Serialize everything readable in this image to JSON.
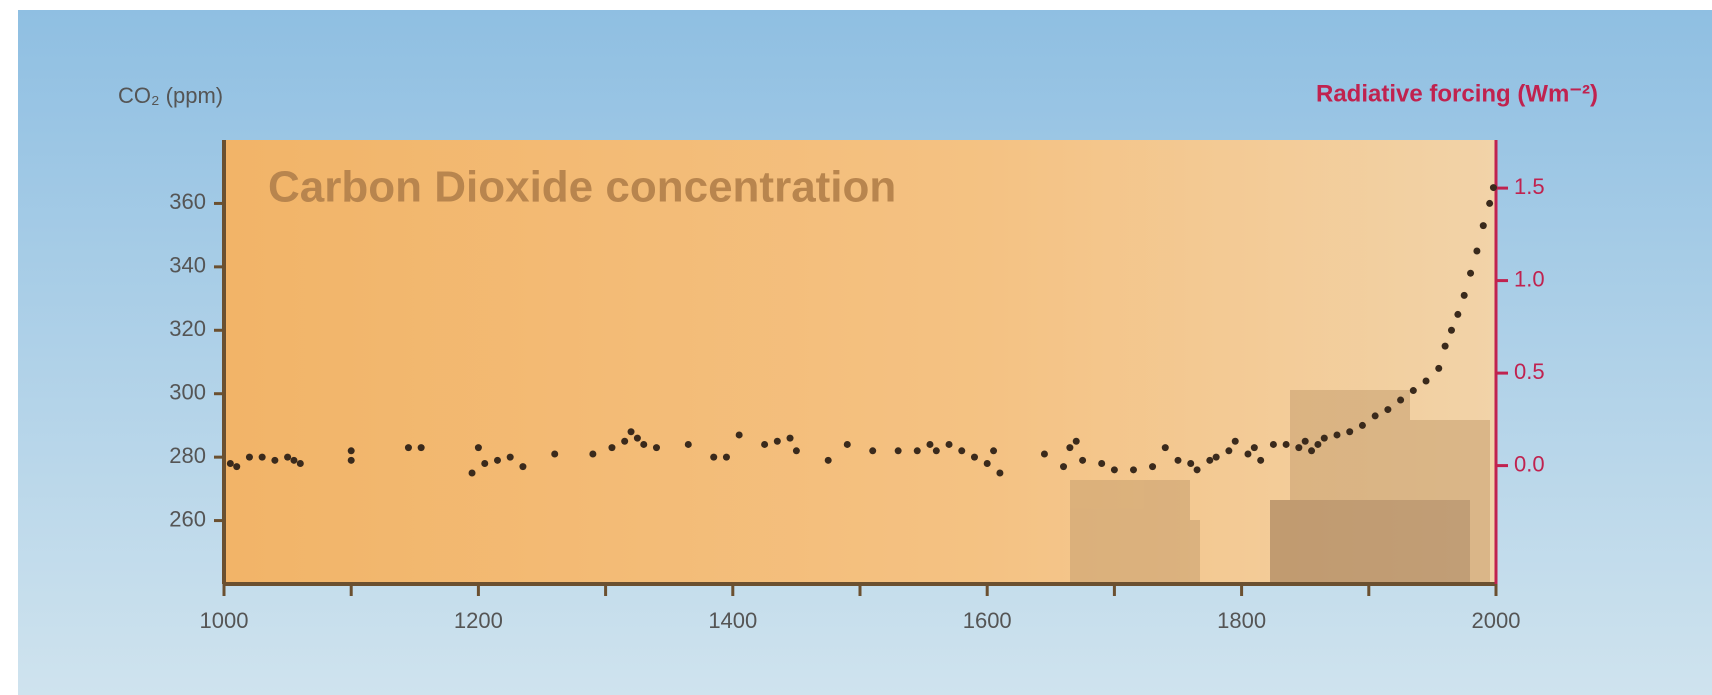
{
  "chart_data": {
    "type": "scatter",
    "title": "Carbon Dioxide concentration",
    "y_label": "CO₂ (ppm)",
    "y2_label": "Radiative forcing (Wm⁻²)",
    "color": "#3a2a1c",
    "x": [
      1005,
      1010,
      1020,
      1030,
      1040,
      1050,
      1055,
      1060,
      1100,
      1100,
      1145,
      1155,
      1195,
      1200,
      1205,
      1215,
      1225,
      1235,
      1260,
      1290,
      1305,
      1315,
      1320,
      1325,
      1330,
      1340,
      1365,
      1385,
      1395,
      1405,
      1425,
      1435,
      1445,
      1450,
      1475,
      1490,
      1510,
      1530,
      1545,
      1555,
      1560,
      1570,
      1580,
      1590,
      1600,
      1605,
      1610,
      1645,
      1660,
      1665,
      1670,
      1675,
      1690,
      1700,
      1715,
      1730,
      1740,
      1750,
      1760,
      1765,
      1775,
      1780,
      1790,
      1795,
      1805,
      1810,
      1815,
      1825,
      1835,
      1845,
      1850,
      1855,
      1860,
      1865,
      1875,
      1885,
      1895,
      1905,
      1915,
      1925,
      1935,
      1945,
      1955,
      1960,
      1965,
      1970,
      1975,
      1980,
      1985,
      1990,
      1995,
      1998
    ],
    "values": [
      278,
      277,
      280,
      280,
      279,
      280,
      279,
      278,
      279,
      282,
      283,
      283,
      275,
      283,
      278,
      279,
      280,
      277,
      281,
      281,
      283,
      285,
      288,
      286,
      284,
      283,
      284,
      280,
      280,
      287,
      284,
      285,
      286,
      282,
      279,
      284,
      282,
      282,
      282,
      284,
      282,
      284,
      282,
      280,
      278,
      282,
      275,
      281,
      277,
      283,
      285,
      279,
      278,
      276,
      276,
      277,
      283,
      279,
      278,
      276,
      279,
      280,
      282,
      285,
      281,
      283,
      279,
      284,
      284,
      283,
      285,
      282,
      284,
      286,
      287,
      288,
      290,
      293,
      295,
      298,
      301,
      304,
      308,
      315,
      320,
      325,
      331,
      338,
      345,
      353,
      360,
      365
    ],
    "xlim": [
      1000,
      2000
    ],
    "xticks": [
      1000,
      1200,
      1400,
      1600,
      1800,
      2000
    ],
    "xminor_ticks": [
      1100,
      1300,
      1500,
      1700,
      1900
    ],
    "ylim": [
      240,
      380
    ],
    "yticks": [
      260,
      280,
      300,
      320,
      340,
      360
    ],
    "y2lim": [
      -0.64,
      1.76
    ],
    "y2ticks": [
      {
        "value": 0,
        "label": "0.0"
      },
      {
        "value": 0.5,
        "label": "0.5"
      },
      {
        "value": 1,
        "label": "1.0"
      },
      {
        "value": 1.5,
        "label": "1.5"
      }
    ],
    "y2_color": "#c0224f"
  }
}
